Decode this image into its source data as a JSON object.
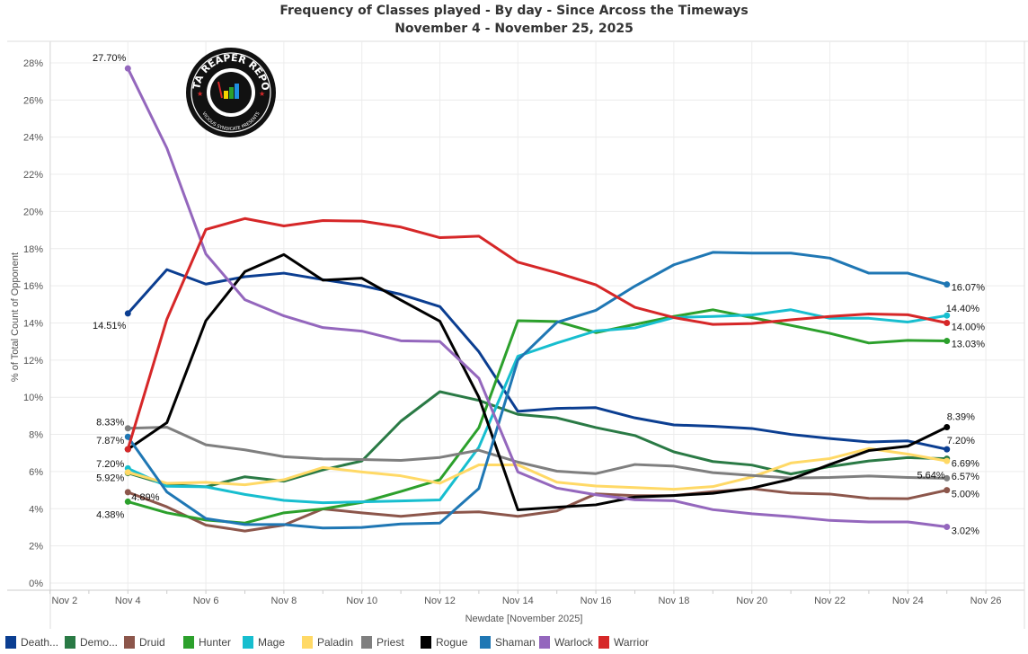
{
  "chart_data": {
    "type": "line",
    "title": "Frequency of Classes played - By day - Since Arcoss the Timeways",
    "subtitle": "November 4 - November 25, 2025",
    "xlabel": "Newdate [November 2025]",
    "ylabel": "% of Total Count of Opponent",
    "xlim": [
      "Nov 2",
      "Nov 26"
    ],
    "ylim": [
      0,
      28.5
    ],
    "x_ticks": [
      "Nov 2",
      "Nov 4",
      "Nov 6",
      "Nov 8",
      "Nov 10",
      "Nov 12",
      "Nov 14",
      "Nov 16",
      "Nov 18",
      "Nov 20",
      "Nov 22",
      "Nov 24",
      "Nov 26"
    ],
    "y_ticks": [
      "0%",
      "2%",
      "4%",
      "6%",
      "8%",
      "10%",
      "12%",
      "14%",
      "16%",
      "18%",
      "20%",
      "22%",
      "24%",
      "26%",
      "28%"
    ],
    "grid": true,
    "legend_placement": "bottom",
    "x": [
      "Nov 4",
      "Nov 5",
      "Nov 6",
      "Nov 7",
      "Nov 8",
      "Nov 9",
      "Nov 10",
      "Nov 11",
      "Nov 12",
      "Nov 13",
      "Nov 14",
      "Nov 15",
      "Nov 16",
      "Nov 17",
      "Nov 18",
      "Nov 19",
      "Nov 20",
      "Nov 21",
      "Nov 22",
      "Nov 23",
      "Nov 24",
      "Nov 25"
    ],
    "series": [
      {
        "name": "Death Knight",
        "legend_label": "Death...",
        "color": "#0b3e91",
        "values": [
          14.51,
          16.87,
          16.09,
          16.49,
          16.68,
          16.33,
          16.01,
          15.54,
          14.88,
          12.45,
          9.24,
          9.4,
          9.44,
          8.89,
          8.51,
          8.44,
          8.32,
          8.0,
          7.78,
          7.59,
          7.65,
          7.2
        ]
      },
      {
        "name": "Demon Hunter",
        "legend_label": "Demo...",
        "color": "#2a7a45",
        "values": [
          5.92,
          5.29,
          5.18,
          5.72,
          5.48,
          6.09,
          6.57,
          8.71,
          10.3,
          9.83,
          9.08,
          8.89,
          8.37,
          7.94,
          7.06,
          6.54,
          6.35,
          5.87,
          6.27,
          6.57,
          6.75,
          6.69
        ]
      },
      {
        "name": "Druid",
        "legend_label": "Druid",
        "color": "#8c564b",
        "values": [
          4.89,
          4.1,
          3.12,
          2.8,
          3.12,
          3.99,
          3.78,
          3.59,
          3.78,
          3.83,
          3.59,
          3.88,
          4.8,
          4.7,
          4.71,
          4.92,
          5.08,
          4.84,
          4.79,
          4.56,
          4.54,
          5.0
        ]
      },
      {
        "name": "Hunter",
        "legend_label": "Hunter",
        "color": "#2ca02c",
        "values": [
          4.38,
          3.78,
          3.39,
          3.23,
          3.78,
          3.99,
          4.34,
          4.93,
          5.56,
          8.36,
          14.12,
          14.08,
          13.48,
          13.92,
          14.35,
          14.71,
          14.29,
          13.87,
          13.44,
          12.92,
          13.06,
          13.03
        ]
      },
      {
        "name": "Mage",
        "legend_label": "Mage",
        "color": "#17becf",
        "values": [
          6.17,
          5.21,
          5.18,
          4.77,
          4.45,
          4.32,
          4.37,
          4.42,
          4.47,
          7.31,
          12.21,
          12.92,
          13.57,
          13.73,
          14.29,
          14.35,
          14.43,
          14.71,
          14.25,
          14.25,
          14.05,
          14.4
        ]
      },
      {
        "name": "Paladin",
        "legend_label": "Paladin",
        "color": "#ffd966",
        "values": [
          5.96,
          5.37,
          5.42,
          5.29,
          5.56,
          6.22,
          5.98,
          5.77,
          5.37,
          6.36,
          6.36,
          5.43,
          5.22,
          5.14,
          5.05,
          5.19,
          5.71,
          6.46,
          6.7,
          7.24,
          6.94,
          6.57
        ]
      },
      {
        "name": "Priest",
        "legend_label": "Priest",
        "color": "#7f7f7f",
        "values": [
          8.33,
          8.39,
          7.44,
          7.17,
          6.8,
          6.68,
          6.65,
          6.6,
          6.76,
          7.15,
          6.51,
          6.02,
          5.89,
          6.38,
          6.29,
          5.94,
          5.79,
          5.65,
          5.68,
          5.76,
          5.68,
          5.64
        ]
      },
      {
        "name": "Rogue",
        "legend_label": "Rogue",
        "color": "#000000",
        "values": [
          7.2,
          8.63,
          14.12,
          16.76,
          17.68,
          16.3,
          16.41,
          15.23,
          14.09,
          10.0,
          3.94,
          4.08,
          4.21,
          4.63,
          4.71,
          4.83,
          5.11,
          5.59,
          6.38,
          7.13,
          7.37,
          8.39
        ]
      },
      {
        "name": "Shaman",
        "legend_label": "Shaman",
        "color": "#1f77b4",
        "values": [
          7.87,
          4.9,
          3.47,
          3.15,
          3.15,
          2.96,
          2.99,
          3.18,
          3.23,
          5.09,
          12.0,
          14.03,
          14.68,
          15.98,
          17.13,
          17.8,
          17.76,
          17.76,
          17.49,
          16.68,
          16.68,
          16.07
        ]
      },
      {
        "name": "Warlock",
        "legend_label": "Warlock",
        "color": "#9467bd",
        "values": [
          27.7,
          23.41,
          17.71,
          15.25,
          14.38,
          13.75,
          13.56,
          13.04,
          13.0,
          11.02,
          5.98,
          5.11,
          4.75,
          4.48,
          4.43,
          3.95,
          3.73,
          3.57,
          3.37,
          3.29,
          3.29,
          3.02
        ]
      },
      {
        "name": "Warrior",
        "legend_label": "Warrior",
        "color": "#d62728",
        "values": [
          7.2,
          14.2,
          19.03,
          19.62,
          19.22,
          19.51,
          19.48,
          19.16,
          18.59,
          18.67,
          17.27,
          16.7,
          16.05,
          14.84,
          14.29,
          13.92,
          13.97,
          14.17,
          14.35,
          14.48,
          14.44,
          14.0
        ]
      }
    ],
    "annotations": [
      {
        "series": "Warlock",
        "x": "Nov 4",
        "text": "27.70%"
      },
      {
        "series": "Death Knight",
        "x": "Nov 4",
        "text": "14.51%"
      },
      {
        "series": "Priest",
        "x": "Nov 4",
        "text": "8.33%"
      },
      {
        "series": "Shaman",
        "x": "Nov 4",
        "text": "7.87%"
      },
      {
        "series": "Warrior",
        "x": "Nov 4",
        "text": "7.20%"
      },
      {
        "series": "Demon Hunter",
        "x": "Nov 4",
        "text": "5.92%"
      },
      {
        "series": "Druid",
        "x": "Nov 4",
        "text": "4.89%"
      },
      {
        "series": "Hunter",
        "x": "Nov 4",
        "text": "4.38%"
      },
      {
        "series": "Shaman",
        "x": "Nov 25",
        "text": "16.07%"
      },
      {
        "series": "Mage",
        "x": "Nov 25",
        "text": "14.40%"
      },
      {
        "series": "Warrior",
        "x": "Nov 25",
        "text": "14.00%"
      },
      {
        "series": "Hunter",
        "x": "Nov 25",
        "text": "13.03%"
      },
      {
        "series": "Rogue",
        "x": "Nov 25",
        "text": "8.39%"
      },
      {
        "series": "Death Knight",
        "x": "Nov 25",
        "text": "7.20%"
      },
      {
        "series": "Demon Hunter",
        "x": "Nov 25",
        "text": "6.69%"
      },
      {
        "series": "Paladin",
        "x": "Nov 25",
        "text": "6.57%"
      },
      {
        "series": "Priest",
        "x": "Nov 25",
        "text": "5.64%"
      },
      {
        "series": "Druid",
        "x": "Nov 25",
        "text": "5.00%"
      },
      {
        "series": "Warlock",
        "x": "Nov 25",
        "text": "3.02%"
      }
    ]
  },
  "logo": {
    "text": "DATA REAPER REPORT",
    "subtext": "VICIOUS SYNDICATE PRESENTS"
  }
}
